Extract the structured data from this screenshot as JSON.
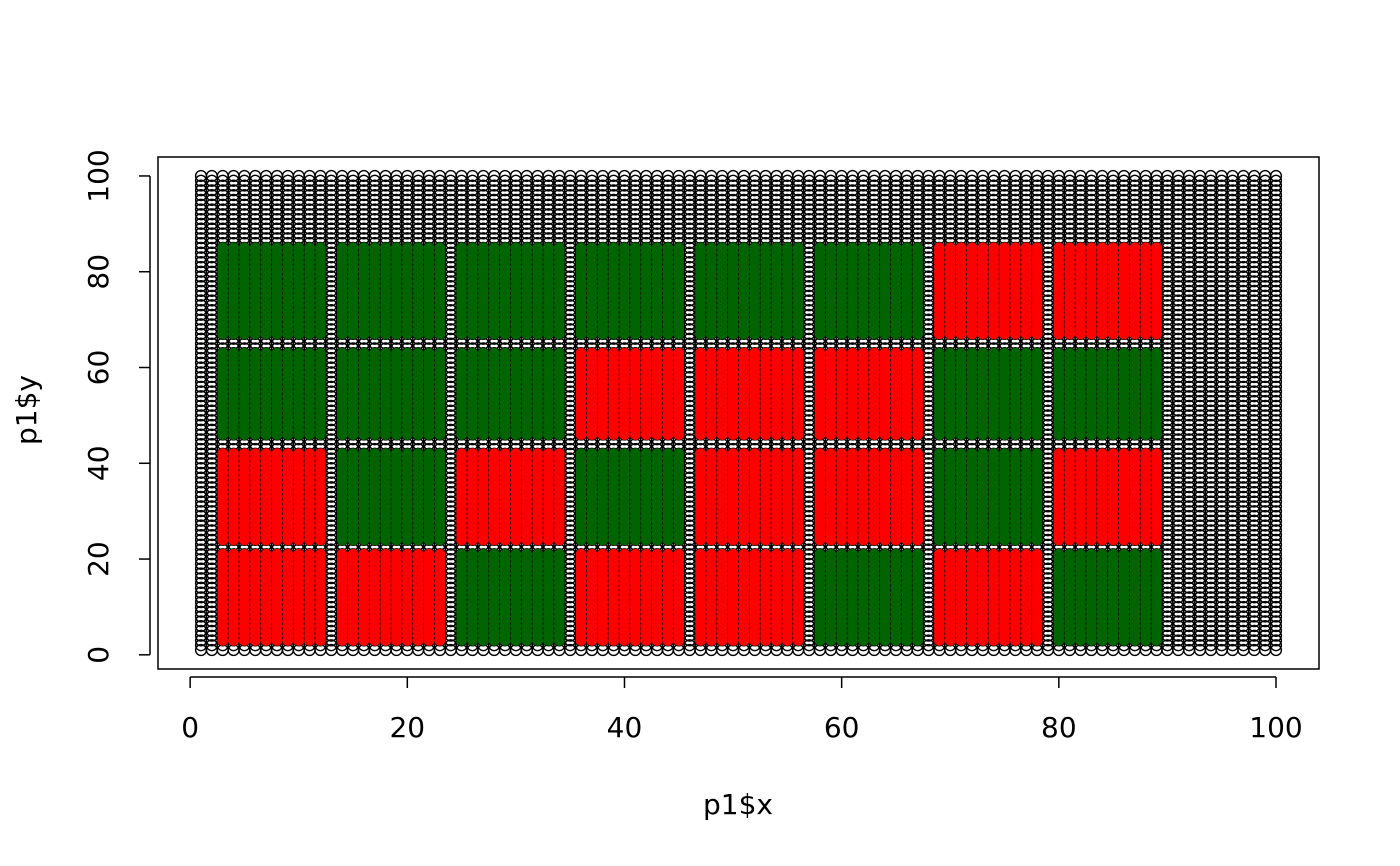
{
  "chart_data": {
    "type": "scatter",
    "xlabel": "p1$x",
    "ylabel": "p1$y",
    "xlim": [
      -2.96,
      103.96
    ],
    "ylim": [
      -2.96,
      103.96
    ],
    "xticks": [
      0,
      20,
      40,
      60,
      80,
      100
    ],
    "yticks": [
      0,
      20,
      40,
      60,
      80,
      100
    ],
    "grid_points": {
      "color": "#000000",
      "x": [
        1,
        2,
        3,
        4,
        5,
        6,
        7,
        8,
        9,
        10,
        11,
        12,
        13,
        14,
        15,
        16,
        17,
        18,
        19,
        20,
        21,
        22,
        23,
        24,
        25,
        26,
        27,
        28,
        29,
        30,
        31,
        32,
        33,
        34,
        35,
        36,
        37,
        38,
        39,
        40,
        41,
        42,
        43,
        44,
        45,
        46,
        47,
        48,
        49,
        50,
        51,
        52,
        53,
        54,
        55,
        56,
        57,
        58,
        59,
        60,
        61,
        62,
        63,
        64,
        65,
        66,
        67,
        68,
        69,
        70,
        71,
        72,
        73,
        74,
        75,
        76,
        77,
        78,
        79,
        80,
        81,
        82,
        83,
        84,
        85,
        86,
        87,
        88,
        89,
        90,
        91,
        92,
        93,
        94,
        95,
        96,
        97,
        98,
        99,
        100
      ],
      "y": [
        1,
        2,
        3,
        4,
        5,
        6,
        7,
        8,
        9,
        10,
        11,
        12,
        13,
        14,
        15,
        16,
        17,
        18,
        19,
        20,
        21,
        22,
        23,
        24,
        25,
        26,
        27,
        28,
        29,
        30,
        31,
        32,
        33,
        34,
        35,
        36,
        37,
        38,
        39,
        40,
        41,
        42,
        43,
        44,
        45,
        46,
        47,
        48,
        49,
        50,
        51,
        52,
        53,
        54,
        55,
        56,
        57,
        58,
        59,
        60,
        61,
        62,
        63,
        64,
        65,
        66,
        67,
        68,
        69,
        70,
        71,
        72,
        73,
        74,
        75,
        76,
        77,
        78,
        79,
        80,
        81,
        82,
        83,
        84,
        85,
        86,
        87,
        88,
        89,
        90,
        91,
        92,
        93,
        94,
        95,
        96,
        97,
        98,
        99,
        100
      ]
    },
    "blocks": {
      "columns": [
        [
          3,
          4,
          5,
          6,
          7,
          8,
          9,
          10,
          11,
          12
        ],
        [
          14,
          15,
          16,
          17,
          18,
          19,
          20,
          21,
          22,
          23
        ],
        [
          25,
          26,
          27,
          28,
          29,
          30,
          31,
          32,
          33,
          34
        ],
        [
          36,
          37,
          38,
          39,
          40,
          41,
          42,
          43,
          44,
          45
        ],
        [
          47,
          48,
          49,
          50,
          51,
          52,
          53,
          54,
          55,
          56
        ],
        [
          58,
          59,
          60,
          61,
          62,
          63,
          64,
          65,
          66,
          67
        ],
        [
          69,
          70,
          71,
          72,
          73,
          74,
          75,
          76,
          77,
          78
        ],
        [
          80,
          81,
          82,
          83,
          84,
          85,
          86,
          87,
          88,
          89
        ]
      ],
      "rows": [
        [
          3,
          4,
          5,
          6,
          7,
          8,
          9,
          10,
          11,
          12,
          13,
          14,
          15,
          16,
          17,
          18,
          19,
          20,
          21
        ],
        [
          24,
          25,
          26,
          27,
          28,
          29,
          30,
          31,
          32,
          33,
          34,
          35,
          36,
          37,
          38,
          39,
          40,
          41,
          42
        ],
        [
          46,
          47,
          48,
          49,
          50,
          51,
          52,
          53,
          54,
          55,
          56,
          57,
          58,
          59,
          60,
          61,
          62,
          63
        ],
        [
          67,
          68,
          69,
          70,
          71,
          72,
          73,
          74,
          75,
          76,
          77,
          78,
          79,
          80,
          81,
          82,
          83,
          84,
          85
        ]
      ],
      "colors": [
        [
          "#ff0000",
          "#ff0000",
          "#006400",
          "#ff0000",
          "#ff0000",
          "#006400",
          "#ff0000",
          "#006400"
        ],
        [
          "#ff0000",
          "#006400",
          "#ff0000",
          "#006400",
          "#ff0000",
          "#ff0000",
          "#006400",
          "#ff0000"
        ],
        [
          "#006400",
          "#006400",
          "#006400",
          "#ff0000",
          "#ff0000",
          "#ff0000",
          "#006400",
          "#006400"
        ],
        [
          "#006400",
          "#006400",
          "#006400",
          "#006400",
          "#006400",
          "#006400",
          "#ff0000",
          "#ff0000"
        ]
      ]
    }
  }
}
